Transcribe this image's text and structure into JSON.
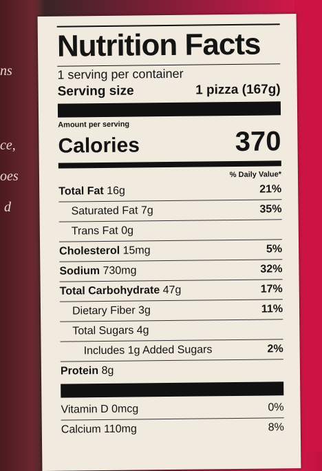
{
  "background_fragments": [
    "ns",
    "ce,",
    "oes",
    "d"
  ],
  "label": {
    "title": "Nutrition Facts",
    "servings": "1 serving per container",
    "serving_size_label": "Serving size",
    "serving_size_value": "1 pizza (167g)",
    "amount_per_serving": "Amount per serving",
    "calories_label": "Calories",
    "calories_value": 370,
    "daily_value_header": "% Daily Value*",
    "nutrients": [
      {
        "name": "Total Fat",
        "amount": "16g",
        "dv": "21%"
      },
      {
        "name": "Saturated Fat",
        "amount": "7g",
        "dv": "35%"
      },
      {
        "name": "Trans Fat",
        "amount": "0g"
      },
      {
        "name": "Cholesterol",
        "amount": "15mg",
        "dv": "5%"
      },
      {
        "name": "Sodium",
        "amount": "730mg",
        "dv": "32%"
      },
      {
        "name": "Total Carbohydrate",
        "amount": "47g",
        "dv": "17%"
      },
      {
        "name": "Dietary Fiber",
        "amount": "3g",
        "dv": "11%"
      },
      {
        "name": "Total Sugars",
        "amount": "4g"
      },
      {
        "name": "Includes 1g Added Sugars",
        "dv": "2%"
      },
      {
        "name": "Protein",
        "amount": "8g"
      }
    ],
    "vitamins": [
      {
        "name": "Vitamin D",
        "amount": "0mcg",
        "dv": "0%"
      },
      {
        "name": "Calcium",
        "amount": "110mg",
        "dv": "8%"
      }
    ]
  }
}
